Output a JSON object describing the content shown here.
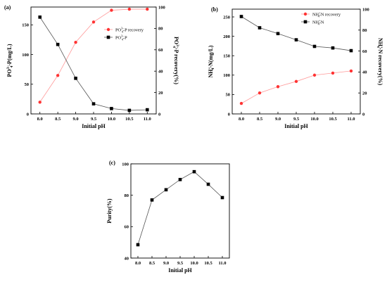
{
  "chart_data": [
    {
      "type": "line",
      "panel_label": "(a)",
      "x": [
        8.0,
        8.5,
        9.0,
        9.5,
        10.0,
        10.5,
        11.0
      ],
      "xlabel": "Initial pH",
      "xlim": [
        7.75,
        11.25
      ],
      "xticks": [
        "8.0",
        "8.5",
        "9.0",
        "9.5",
        "10.0",
        "10.5",
        "11.0"
      ],
      "ylabel_left_parts": [
        "PO",
        "4",
        "3−",
        "-P(mg/L)"
      ],
      "ylabel_right_parts": [
        "PO",
        "4",
        "3−",
        "-P recovery(%)"
      ],
      "ylim_left": [
        0,
        180
      ],
      "ylim_right": [
        0,
        100
      ],
      "yticks_left": [
        "0",
        "50",
        "100",
        "150"
      ],
      "yticks_right": [
        "0",
        "20",
        "40",
        "60",
        "80",
        "100"
      ],
      "grid": false,
      "legend_position": "top-right",
      "series": [
        {
          "name_parts": [
            "PO",
            "4",
            "3−",
            "-P recovery"
          ],
          "axis": "right",
          "color": "#ff3333",
          "marker": "circle",
          "values": [
            11,
            36,
            67,
            86,
            97,
            98,
            98
          ]
        },
        {
          "name_parts": [
            "PO",
            "4",
            "3−",
            "-P"
          ],
          "axis": "left",
          "color": "#000000",
          "marker": "square",
          "values": [
            163,
            117,
            60,
            17,
            9,
            6,
            7
          ]
        }
      ]
    },
    {
      "type": "line",
      "panel_label": "(b)",
      "x": [
        8.0,
        8.5,
        9.0,
        9.5,
        10.0,
        10.5,
        11.0
      ],
      "xlabel": "Initial pH",
      "xlim": [
        7.75,
        11.25
      ],
      "xticks": [
        "8.0",
        "8.5",
        "9.0",
        "9.5",
        "10.0",
        "10.5",
        "11.0"
      ],
      "ylabel_left_parts": [
        "NH",
        "4",
        "+",
        "-N(mg/L)"
      ],
      "ylabel_right_parts": [
        "NH",
        "4",
        "+",
        "-N recovery(%)"
      ],
      "ylim_left": [
        0,
        270
      ],
      "ylim_right": [
        0,
        100
      ],
      "yticks_left": [
        "0",
        "50",
        "100",
        "150",
        "200",
        "250"
      ],
      "yticks_right": [
        "0",
        "20",
        "40",
        "60",
        "80",
        "100"
      ],
      "grid": false,
      "legend_position": "top-right",
      "series": [
        {
          "name_parts": [
            "NH",
            "4",
            "+",
            "-N recovery"
          ],
          "axis": "right",
          "color": "#ff3333",
          "marker": "circle",
          "values": [
            10,
            20,
            26,
            31,
            37,
            39,
            41
          ]
        },
        {
          "name_parts": [
            "NH",
            "4",
            "+",
            "-N"
          ],
          "axis": "left",
          "color": "#000000",
          "marker": "square",
          "values": [
            251,
            222,
            207,
            191,
            174,
            170,
            163
          ]
        }
      ]
    },
    {
      "type": "line",
      "panel_label": "(c)",
      "x": [
        8.0,
        8.5,
        9.0,
        9.5,
        10.0,
        10.5,
        11.0
      ],
      "xlabel": "Initial pH",
      "xlim": [
        7.75,
        11.25
      ],
      "xticks": [
        "8.0",
        "8.5",
        "9.0",
        "9.5",
        "10.0",
        "10.5",
        "11.0"
      ],
      "ylabel": "Purity(%)",
      "ylim": [
        40,
        100
      ],
      "yticks": [
        "40",
        "60",
        "80",
        "100"
      ],
      "grid": false,
      "series": [
        {
          "name": "",
          "axis": "left",
          "color": "#000000",
          "marker": "square",
          "values": [
            48.5,
            77,
            83.5,
            90,
            95,
            87,
            78.5
          ]
        }
      ]
    }
  ]
}
